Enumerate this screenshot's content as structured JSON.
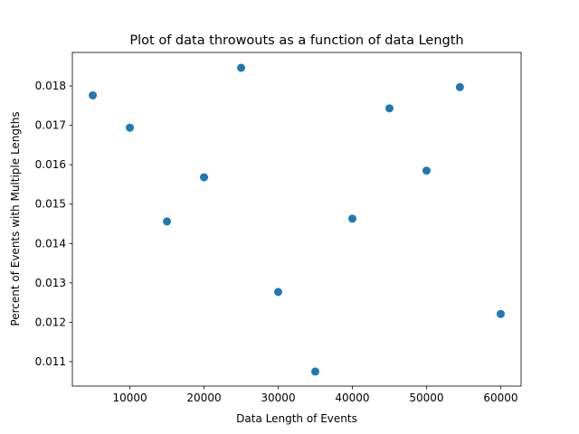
{
  "chart_data": {
    "type": "scatter",
    "title": "Plot of data throwouts as a function of data Length",
    "xlabel": "Data Length of Events",
    "ylabel": "Percent of Events with Multiple Lengths",
    "xlim": [
      2250,
      62750
    ],
    "ylim": [
      0.01038,
      0.01885
    ],
    "xticks": [
      10000,
      20000,
      30000,
      40000,
      50000,
      60000
    ],
    "xtick_labels": [
      "10000",
      "20000",
      "30000",
      "40000",
      "50000",
      "60000"
    ],
    "yticks": [
      0.011,
      0.012,
      0.013,
      0.014,
      0.015,
      0.016,
      0.017,
      0.018
    ],
    "ytick_labels": [
      "0.011",
      "0.012",
      "0.013",
      "0.014",
      "0.015",
      "0.016",
      "0.017",
      "0.018"
    ],
    "grid": false,
    "marker_color": "#1f77b4",
    "points": [
      {
        "x": 5000,
        "y": 0.01776
      },
      {
        "x": 10000,
        "y": 0.01694
      },
      {
        "x": 15000,
        "y": 0.01456
      },
      {
        "x": 20000,
        "y": 0.01568
      },
      {
        "x": 25000,
        "y": 0.01846
      },
      {
        "x": 30000,
        "y": 0.01277
      },
      {
        "x": 35000,
        "y": 0.01075
      },
      {
        "x": 40000,
        "y": 0.01463
      },
      {
        "x": 45000,
        "y": 0.01743
      },
      {
        "x": 50000,
        "y": 0.01585
      },
      {
        "x": 54500,
        "y": 0.01797
      },
      {
        "x": 60000,
        "y": 0.01221
      }
    ]
  }
}
